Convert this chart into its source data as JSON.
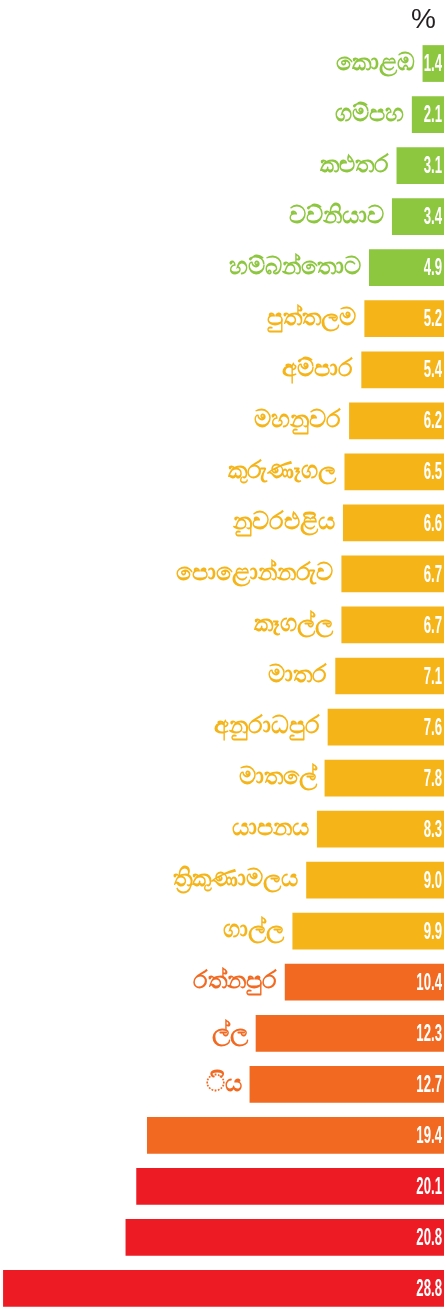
{
  "chart_data": {
    "type": "bar",
    "orientation": "horizontal",
    "title": "%",
    "categories": [
      "කොළඹ",
      "ගම්පහ",
      "කළුතර",
      "වව්නියාව",
      "හම්බන්තොට",
      "පුත්තලම",
      "අම්පාර",
      "මහනුවර",
      "කුරුණෑගල",
      "නුවරඑළිය",
      "පොළොන්නරුව",
      "කෑගල්ල",
      "මාතර",
      "අනුරාධපුර",
      "මාතලේ",
      "යාපනය",
      "ත්‍රිකුණාමලය",
      "ගාල්ල",
      "රත්නපුර",
      "ල්ල",
      "ිය",
      null,
      null,
      null,
      null
    ],
    "values": [
      1.4,
      2.1,
      3.1,
      3.4,
      4.9,
      5.2,
      5.4,
      6.2,
      6.5,
      6.6,
      6.7,
      6.7,
      7.1,
      7.6,
      7.8,
      8.3,
      9.0,
      9.9,
      10.4,
      12.3,
      12.7,
      19.4,
      20.1,
      20.8,
      28.8
    ],
    "colors": [
      "#8dc63f",
      "#8dc63f",
      "#8dc63f",
      "#8dc63f",
      "#8dc63f",
      "#f5b418",
      "#f5b418",
      "#f5b418",
      "#f5b418",
      "#f5b418",
      "#f5b418",
      "#f5b418",
      "#f5b418",
      "#f5b418",
      "#f5b418",
      "#f5b418",
      "#f5b418",
      "#f5b418",
      "#f26a21",
      "#f26a21",
      "#f26a21",
      "#f26a21",
      "#ed1c24",
      "#ed1c24",
      "#ed1c24"
    ],
    "value_labels": [
      "1.4",
      "2.1",
      "3.1",
      "3.4",
      "4.9",
      "5.2",
      "5.4",
      "6.2",
      "6.5",
      "6.6",
      "6.7",
      "6.7",
      "7.1",
      "7.6",
      "7.8",
      "8.3",
      "9.0",
      "9.9",
      "10.4",
      "12.3",
      "12.7",
      "19.4",
      "20.1",
      "20.8",
      "28.8"
    ],
    "xlim": [
      29,
      0
    ]
  }
}
